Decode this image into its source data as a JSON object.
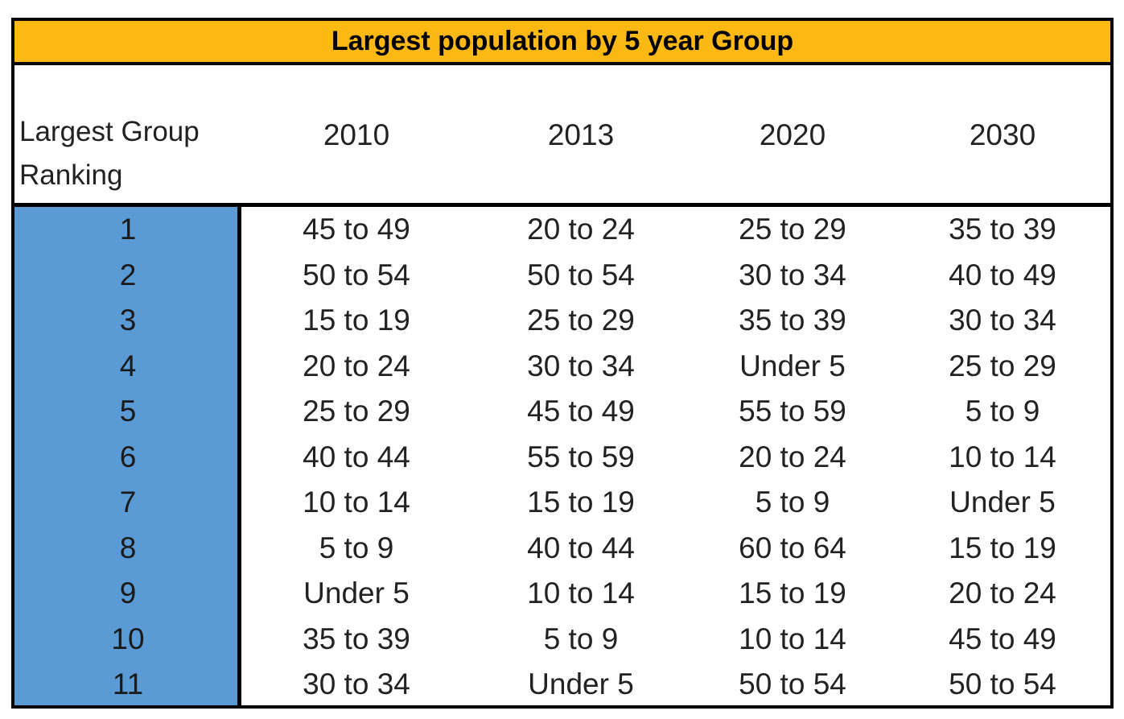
{
  "table": {
    "title": "Largest population by 5 year Group",
    "rank_header": "Largest Group Ranking",
    "years": [
      "2010",
      "2013",
      "2020",
      "2030"
    ],
    "rows": [
      {
        "rank": "1",
        "cells": [
          "45 to 49",
          "20 to 24",
          "25 to 29",
          "35 to 39"
        ]
      },
      {
        "rank": "2",
        "cells": [
          "50 to 54",
          "50 to 54",
          "30 to 34",
          "40 to 49"
        ]
      },
      {
        "rank": "3",
        "cells": [
          "15 to 19",
          "25 to 29",
          "35 to 39",
          "30 to 34"
        ]
      },
      {
        "rank": "4",
        "cells": [
          "20 to 24",
          "30 to 34",
          "Under 5",
          "25 to 29"
        ]
      },
      {
        "rank": "5",
        "cells": [
          "25 to 29",
          "45 to 49",
          "55 to 59",
          "5 to 9"
        ]
      },
      {
        "rank": "6",
        "cells": [
          "40 to 44",
          "55 to 59",
          "20 to 24",
          "10 to 14"
        ]
      },
      {
        "rank": "7",
        "cells": [
          "10 to 14",
          "15 to 19",
          "5 to 9",
          "Under 5"
        ]
      },
      {
        "rank": "8",
        "cells": [
          "5 to 9",
          "40 to 44",
          "60 to 64",
          "15 to 19"
        ]
      },
      {
        "rank": "9",
        "cells": [
          "Under 5",
          "10 to 14",
          "15 to 19",
          "20 to 24"
        ]
      },
      {
        "rank": "10",
        "cells": [
          "35 to 39",
          "5 to 9",
          "10 to 14",
          "45 to 49"
        ]
      },
      {
        "rank": "11",
        "cells": [
          "30 to 34",
          "Under 5",
          "50 to 54",
          "50 to 54"
        ]
      }
    ]
  },
  "colors": {
    "title_background": "#fcb913",
    "rank_column_background": "#5b9bd5",
    "border": "#000000"
  }
}
